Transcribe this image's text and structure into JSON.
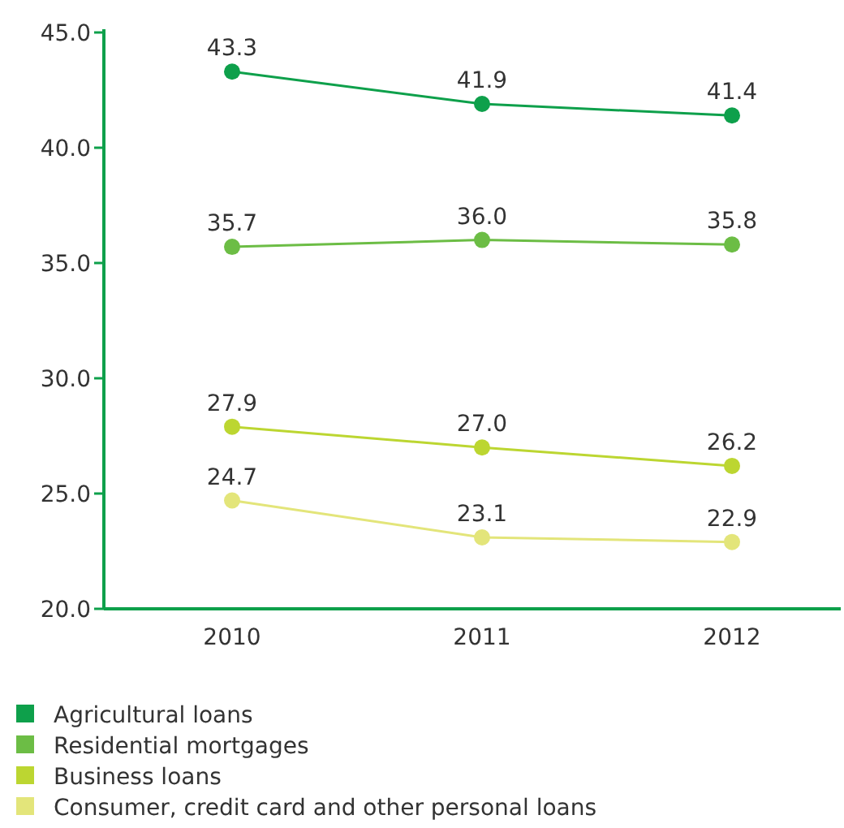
{
  "chart_data": {
    "type": "line",
    "categories": [
      "2010",
      "2011",
      "2012"
    ],
    "series": [
      {
        "name": "Agricultural loans",
        "color": "#0ea04b",
        "values": [
          43.3,
          41.9,
          41.4
        ],
        "value_labels": [
          "43.3",
          "41.9",
          "41.4"
        ]
      },
      {
        "name": "Residential mortgages",
        "color": "#6cbd45",
        "values": [
          35.7,
          36.0,
          35.8
        ],
        "value_labels": [
          "35.7",
          "36.0",
          "35.8"
        ]
      },
      {
        "name": "Business loans",
        "color": "#bcd631",
        "values": [
          27.9,
          27.0,
          26.2
        ],
        "value_labels": [
          "27.9",
          "27.0",
          "26.2"
        ]
      },
      {
        "name": "Consumer, credit card and other personal loans",
        "color": "#e3e57a",
        "values": [
          24.7,
          23.1,
          22.9
        ],
        "value_labels": [
          "24.7",
          "23.1",
          "22.9"
        ]
      }
    ],
    "ylim": [
      20,
      45
    ],
    "yticks": [
      {
        "value": 20,
        "label": "20.0"
      },
      {
        "value": 25,
        "label": "25.0"
      },
      {
        "value": 30,
        "label": "30.0"
      },
      {
        "value": 35,
        "label": "35.0"
      },
      {
        "value": 40,
        "label": "40.0"
      },
      {
        "value": 45,
        "label": "45.0"
      }
    ],
    "marker": "circle",
    "legend": "bottom",
    "grid": false
  }
}
